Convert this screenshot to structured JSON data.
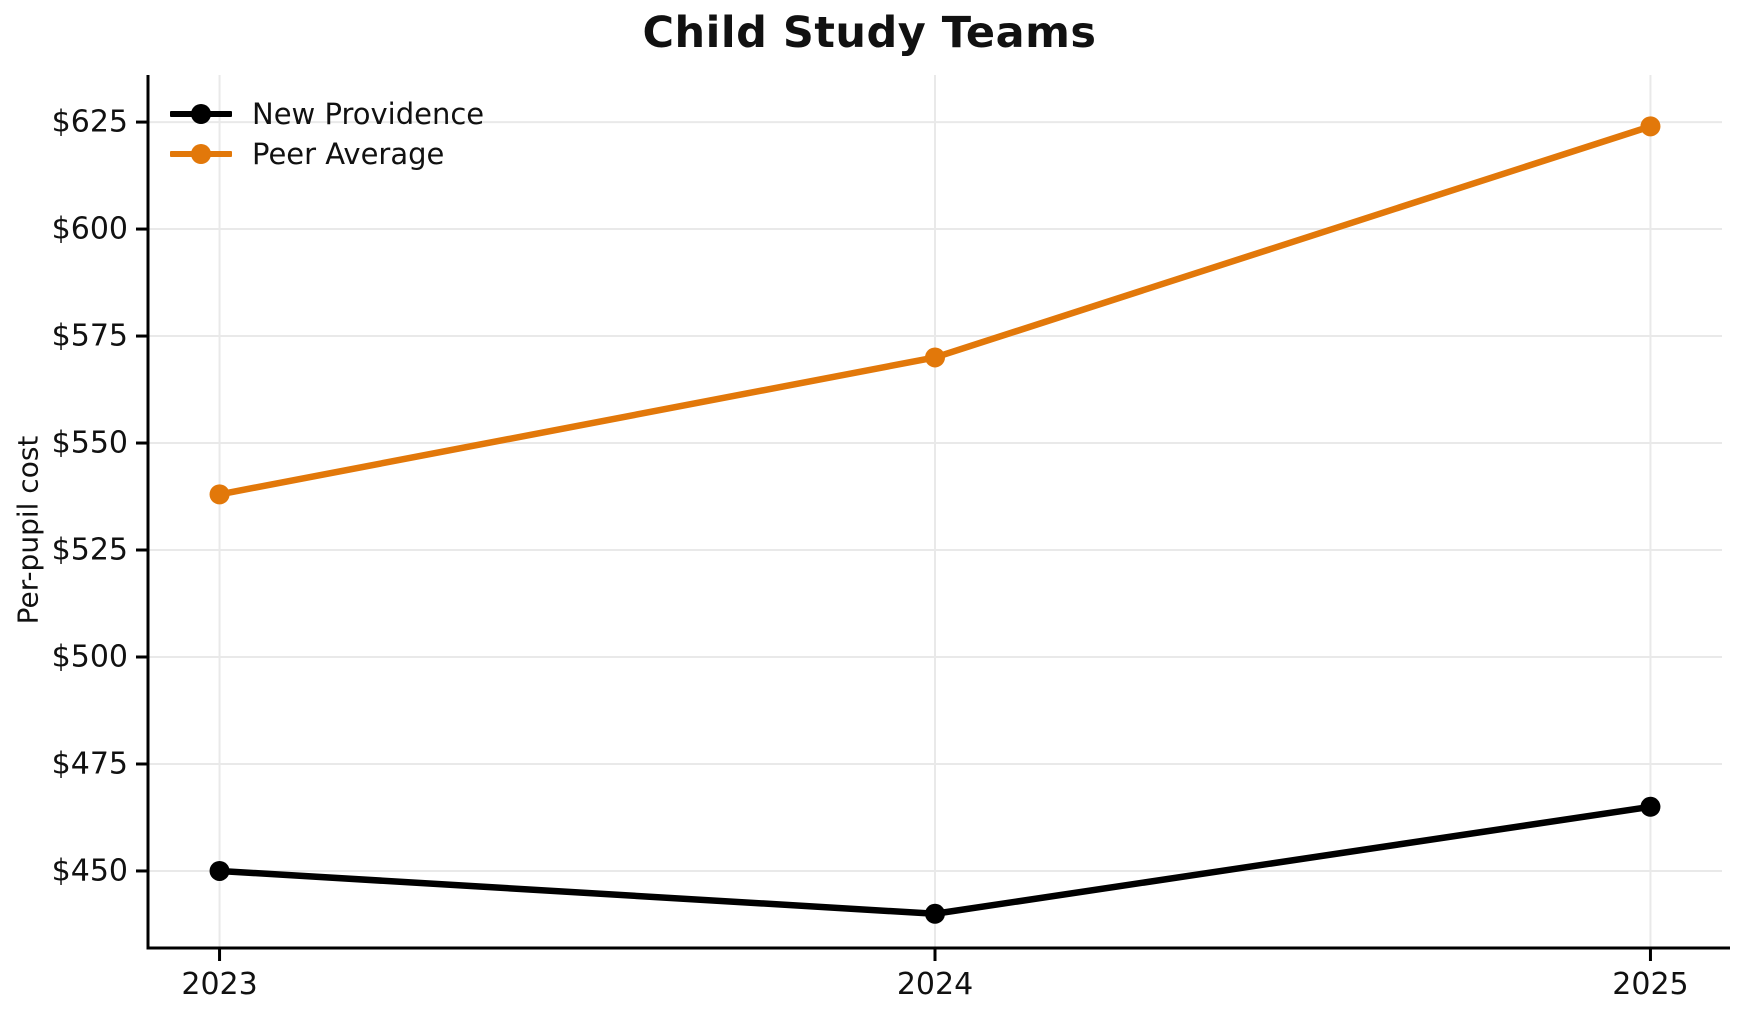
{
  "title": "Child Study Teams",
  "chart_data": {
    "type": "line",
    "x": [
      2023,
      2024,
      2025
    ],
    "x_tick_labels": [
      "2023",
      "2024",
      "2025"
    ],
    "series": [
      {
        "name": "New Providence",
        "color": "#000000",
        "values": [
          450,
          440,
          465
        ]
      },
      {
        "name": "Peer Average",
        "color": "#E2780A",
        "values": [
          538,
          570,
          624
        ]
      }
    ],
    "ylabel": "Per-pupil cost",
    "xlabel": "",
    "y_ticks": [
      450,
      475,
      500,
      525,
      550,
      575,
      600,
      625
    ],
    "y_tick_labels": [
      "$450",
      "$475",
      "$500",
      "$525",
      "$550",
      "$575",
      "$600",
      "$625"
    ],
    "ylim": [
      432,
      636
    ],
    "xlim": [
      2022.9,
      2025.1
    ],
    "grid": true,
    "grid_color": "#e9e9e9",
    "axis_color": "#000000",
    "legend_position": "upper-left",
    "marker": "circle"
  }
}
